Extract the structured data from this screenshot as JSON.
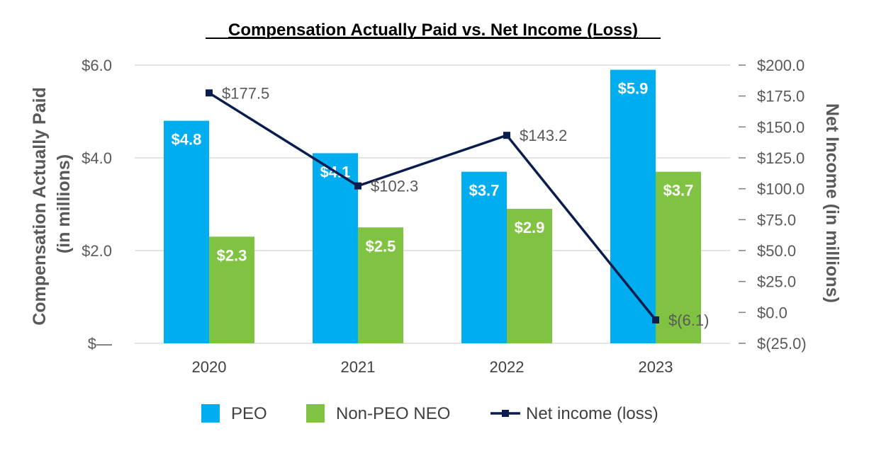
{
  "chart_data": {
    "type": "bar",
    "title": "Compensation Actually Paid vs. Net Income (Loss)",
    "categories": [
      "2020",
      "2021",
      "2022",
      "2023"
    ],
    "y_left_label_lines": [
      "Compensation Actually Paid",
      "(in millions)"
    ],
    "y_right_label": "Net Income (in millions)",
    "y_left_ticks": [
      {
        "value": 0,
        "label": "$—"
      },
      {
        "value": 2,
        "label": "$2.0"
      },
      {
        "value": 4,
        "label": "$4.0"
      },
      {
        "value": 6,
        "label": "$6.0"
      }
    ],
    "y_right_ticks": [
      {
        "value": -25,
        "label": "$(25.0)"
      },
      {
        "value": 0,
        "label": "$0.0"
      },
      {
        "value": 25,
        "label": "$25.0"
      },
      {
        "value": 50,
        "label": "$50.0"
      },
      {
        "value": 75,
        "label": "$75.0"
      },
      {
        "value": 100,
        "label": "$100.0"
      },
      {
        "value": 125,
        "label": "$125.0"
      },
      {
        "value": 150,
        "label": "$150.0"
      },
      {
        "value": 175,
        "label": "$175.0"
      },
      {
        "value": 200,
        "label": "$200.0"
      }
    ],
    "ylim_left": [
      0,
      6
    ],
    "ylim_right": [
      -25,
      200
    ],
    "grid": true,
    "legend_position": "bottom",
    "bar_series": [
      {
        "name": "PEO",
        "color": "#00aeef",
        "values": [
          4.8,
          4.1,
          3.7,
          5.9
        ],
        "labels": [
          "$4.8",
          "$4.1",
          "$3.7",
          "$5.9"
        ]
      },
      {
        "name": "Non-PEO NEO",
        "color": "#80c342",
        "values": [
          2.3,
          2.5,
          2.9,
          3.7
        ],
        "labels": [
          "$2.3",
          "$2.5",
          "$2.9",
          "$3.7"
        ]
      }
    ],
    "line_series": {
      "name": "Net income (loss)",
      "color": "#0b1d4f",
      "axis": "right",
      "values": [
        177.5,
        102.3,
        143.2,
        -6.1
      ],
      "labels": [
        "$177.5",
        "$102.3",
        "$143.2",
        "$(6.1)"
      ]
    }
  }
}
